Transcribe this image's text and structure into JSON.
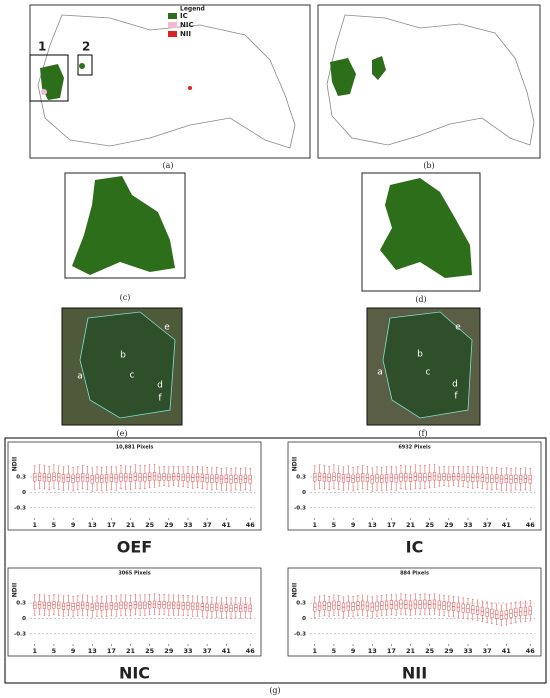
{
  "panel_labels": {
    "a": "(a)",
    "b": "(b)",
    "c": "(c)",
    "d": "(d)",
    "e": "(e)",
    "f": "(f)",
    "g": "(g)"
  },
  "map_legend": {
    "title": "Legend",
    "items": [
      "IC",
      "NIC",
      "NII"
    ]
  },
  "insets": [
    "1",
    "2"
  ],
  "zones": [
    "a",
    "b",
    "c",
    "d",
    "e",
    "f"
  ],
  "chart_data": [
    {
      "type": "box",
      "name": "OEF",
      "title": "10,881 Pixels",
      "y_label": "NDII",
      "color": "#e06666",
      "x": [
        1,
        2,
        3,
        4,
        5,
        6,
        7,
        8,
        9,
        10,
        11,
        12,
        13,
        14,
        15,
        16,
        17,
        18,
        19,
        20,
        21,
        22,
        23,
        24,
        25,
        26,
        27,
        28,
        29,
        30,
        31,
        32,
        33,
        34,
        35,
        36,
        37,
        38,
        39,
        40,
        41,
        42,
        43,
        44,
        45,
        46
      ],
      "xlim": [
        0,
        47
      ],
      "xticks": [
        1,
        5,
        9,
        13,
        17,
        21,
        25,
        29,
        33,
        37,
        41,
        46
      ],
      "ylim": [
        -0.5,
        0.75
      ],
      "yticks": [
        0.3,
        0,
        -0.3
      ],
      "grid": true,
      "median": [
        0.3,
        0.31,
        0.3,
        0.29,
        0.31,
        0.3,
        0.28,
        0.29,
        0.27,
        0.29,
        0.3,
        0.29,
        0.26,
        0.28,
        0.27,
        0.28,
        0.29,
        0.28,
        0.3,
        0.3,
        0.29,
        0.31,
        0.3,
        0.3,
        0.31,
        0.32,
        0.3,
        0.31,
        0.3,
        0.31,
        0.31,
        0.3,
        0.3,
        0.29,
        0.3,
        0.29,
        0.28,
        0.27,
        0.28,
        0.26,
        0.27,
        0.26,
        0.27,
        0.26,
        0.27,
        0.26
      ],
      "q1": [
        0.22,
        0.23,
        0.22,
        0.21,
        0.23,
        0.22,
        0.2,
        0.21,
        0.19,
        0.21,
        0.22,
        0.21,
        0.18,
        0.2,
        0.19,
        0.2,
        0.21,
        0.2,
        0.22,
        0.22,
        0.21,
        0.23,
        0.22,
        0.22,
        0.23,
        0.24,
        0.23,
        0.24,
        0.23,
        0.24,
        0.24,
        0.23,
        0.22,
        0.21,
        0.22,
        0.21,
        0.2,
        0.19,
        0.2,
        0.18,
        0.19,
        0.18,
        0.19,
        0.18,
        0.19,
        0.18
      ],
      "q3": [
        0.37,
        0.38,
        0.37,
        0.36,
        0.38,
        0.37,
        0.35,
        0.36,
        0.34,
        0.36,
        0.37,
        0.36,
        0.33,
        0.35,
        0.34,
        0.35,
        0.36,
        0.35,
        0.37,
        0.37,
        0.36,
        0.38,
        0.37,
        0.37,
        0.38,
        0.39,
        0.36,
        0.37,
        0.36,
        0.37,
        0.37,
        0.36,
        0.37,
        0.36,
        0.37,
        0.36,
        0.35,
        0.34,
        0.35,
        0.33,
        0.34,
        0.33,
        0.34,
        0.33,
        0.34,
        0.33
      ],
      "low": [
        0.06,
        0.08,
        0.07,
        0.05,
        0.08,
        0.06,
        0.04,
        0.06,
        0.03,
        0.05,
        0.07,
        0.05,
        0.02,
        0.04,
        0.03,
        0.04,
        0.05,
        0.04,
        0.07,
        0.06,
        0.05,
        0.08,
        0.07,
        0.07,
        0.09,
        0.1,
        0.12,
        0.13,
        0.12,
        0.13,
        0.12,
        0.11,
        0.1,
        0.08,
        0.09,
        0.07,
        0.06,
        0.05,
        0.06,
        0.03,
        0.04,
        0.03,
        0.05,
        0.04,
        0.05,
        0.04
      ],
      "high": [
        0.52,
        0.54,
        0.53,
        0.51,
        0.54,
        0.52,
        0.5,
        0.52,
        0.49,
        0.51,
        0.53,
        0.51,
        0.48,
        0.5,
        0.49,
        0.5,
        0.51,
        0.5,
        0.53,
        0.52,
        0.51,
        0.54,
        0.53,
        0.53,
        0.54,
        0.55,
        0.5,
        0.51,
        0.5,
        0.51,
        0.51,
        0.5,
        0.51,
        0.5,
        0.51,
        0.5,
        0.49,
        0.48,
        0.49,
        0.47,
        0.48,
        0.47,
        0.48,
        0.47,
        0.48,
        0.47
      ]
    },
    {
      "type": "box",
      "name": "IC",
      "title": "6932 Pixels",
      "y_label": "NDII",
      "color": "#e06666",
      "x": [
        1,
        2,
        3,
        4,
        5,
        6,
        7,
        8,
        9,
        10,
        11,
        12,
        13,
        14,
        15,
        16,
        17,
        18,
        19,
        20,
        21,
        22,
        23,
        24,
        25,
        26,
        27,
        28,
        29,
        30,
        31,
        32,
        33,
        34,
        35,
        36,
        37,
        38,
        39,
        40,
        41,
        42,
        43,
        44,
        45,
        46
      ],
      "xlim": [
        0,
        47
      ],
      "xticks": [
        1,
        5,
        9,
        13,
        17,
        21,
        25,
        29,
        33,
        37,
        41,
        46
      ],
      "ylim": [
        -0.5,
        0.75
      ],
      "yticks": [
        0.3,
        0,
        -0.3
      ],
      "grid": true,
      "median": [
        0.3,
        0.31,
        0.3,
        0.29,
        0.31,
        0.3,
        0.28,
        0.29,
        0.27,
        0.29,
        0.3,
        0.29,
        0.26,
        0.28,
        0.27,
        0.28,
        0.29,
        0.28,
        0.3,
        0.3,
        0.29,
        0.31,
        0.3,
        0.3,
        0.31,
        0.32,
        0.3,
        0.31,
        0.3,
        0.31,
        0.31,
        0.3,
        0.3,
        0.29,
        0.3,
        0.29,
        0.28,
        0.27,
        0.28,
        0.26,
        0.27,
        0.26,
        0.27,
        0.26,
        0.27,
        0.26
      ],
      "q1": [
        0.22,
        0.23,
        0.22,
        0.21,
        0.23,
        0.22,
        0.2,
        0.21,
        0.19,
        0.21,
        0.22,
        0.21,
        0.18,
        0.2,
        0.19,
        0.2,
        0.21,
        0.2,
        0.22,
        0.22,
        0.21,
        0.23,
        0.22,
        0.22,
        0.23,
        0.24,
        0.23,
        0.24,
        0.23,
        0.24,
        0.24,
        0.23,
        0.22,
        0.21,
        0.22,
        0.21,
        0.2,
        0.19,
        0.2,
        0.18,
        0.19,
        0.18,
        0.19,
        0.18,
        0.19,
        0.18
      ],
      "q3": [
        0.37,
        0.38,
        0.37,
        0.36,
        0.38,
        0.37,
        0.35,
        0.36,
        0.34,
        0.36,
        0.37,
        0.36,
        0.33,
        0.35,
        0.34,
        0.35,
        0.36,
        0.35,
        0.37,
        0.37,
        0.36,
        0.38,
        0.37,
        0.37,
        0.38,
        0.39,
        0.36,
        0.37,
        0.36,
        0.37,
        0.37,
        0.36,
        0.37,
        0.36,
        0.37,
        0.36,
        0.35,
        0.34,
        0.35,
        0.33,
        0.34,
        0.33,
        0.34,
        0.33,
        0.34,
        0.33
      ],
      "low": [
        0.06,
        0.08,
        0.07,
        0.05,
        0.08,
        0.06,
        0.04,
        0.06,
        0.03,
        0.05,
        0.07,
        0.05,
        0.02,
        0.04,
        0.03,
        0.04,
        0.05,
        0.04,
        0.07,
        0.06,
        0.05,
        0.08,
        0.07,
        0.07,
        0.09,
        0.1,
        0.12,
        0.13,
        0.12,
        0.13,
        0.12,
        0.11,
        0.1,
        0.08,
        0.09,
        0.07,
        0.06,
        0.05,
        0.06,
        0.03,
        0.04,
        0.03,
        0.05,
        0.04,
        0.05,
        0.04
      ],
      "high": [
        0.52,
        0.54,
        0.53,
        0.51,
        0.54,
        0.52,
        0.5,
        0.52,
        0.49,
        0.51,
        0.53,
        0.51,
        0.48,
        0.5,
        0.49,
        0.5,
        0.51,
        0.5,
        0.53,
        0.52,
        0.51,
        0.54,
        0.53,
        0.53,
        0.54,
        0.55,
        0.5,
        0.51,
        0.5,
        0.51,
        0.51,
        0.5,
        0.51,
        0.5,
        0.51,
        0.5,
        0.49,
        0.48,
        0.49,
        0.47,
        0.48,
        0.47,
        0.48,
        0.47,
        0.48,
        0.47
      ]
    },
    {
      "type": "box",
      "name": "NIC",
      "title": "3065 Pixels",
      "y_label": "NDII",
      "color": "#e06666",
      "x": [
        1,
        2,
        3,
        4,
        5,
        6,
        7,
        8,
        9,
        10,
        11,
        12,
        13,
        14,
        15,
        16,
        17,
        18,
        19,
        20,
        21,
        22,
        23,
        24,
        25,
        26,
        27,
        28,
        29,
        30,
        31,
        32,
        33,
        34,
        35,
        36,
        37,
        38,
        39,
        40,
        41,
        42,
        43,
        44,
        45,
        46
      ],
      "xlim": [
        0,
        47
      ],
      "xticks": [
        1,
        5,
        9,
        13,
        17,
        21,
        25,
        29,
        33,
        37,
        41,
        46
      ],
      "ylim": [
        -0.5,
        0.75
      ],
      "yticks": [
        0.3,
        0,
        -0.3
      ],
      "grid": true,
      "median": [
        0.26,
        0.27,
        0.26,
        0.25,
        0.27,
        0.26,
        0.24,
        0.25,
        0.23,
        0.25,
        0.26,
        0.25,
        0.22,
        0.24,
        0.23,
        0.24,
        0.25,
        0.24,
        0.26,
        0.26,
        0.25,
        0.27,
        0.26,
        0.26,
        0.27,
        0.28,
        0.27,
        0.27,
        0.26,
        0.26,
        0.26,
        0.25,
        0.25,
        0.24,
        0.24,
        0.23,
        0.22,
        0.21,
        0.22,
        0.2,
        0.21,
        0.2,
        0.21,
        0.2,
        0.21,
        0.2
      ],
      "q1": [
        0.19,
        0.2,
        0.19,
        0.18,
        0.2,
        0.19,
        0.17,
        0.18,
        0.16,
        0.18,
        0.19,
        0.18,
        0.15,
        0.17,
        0.16,
        0.17,
        0.18,
        0.17,
        0.19,
        0.19,
        0.18,
        0.2,
        0.19,
        0.19,
        0.2,
        0.21,
        0.2,
        0.2,
        0.19,
        0.19,
        0.19,
        0.18,
        0.18,
        0.17,
        0.17,
        0.16,
        0.15,
        0.14,
        0.15,
        0.13,
        0.14,
        0.13,
        0.14,
        0.13,
        0.14,
        0.13
      ],
      "q3": [
        0.32,
        0.33,
        0.32,
        0.31,
        0.33,
        0.32,
        0.3,
        0.31,
        0.29,
        0.31,
        0.32,
        0.31,
        0.28,
        0.3,
        0.29,
        0.3,
        0.31,
        0.3,
        0.32,
        0.32,
        0.31,
        0.33,
        0.32,
        0.32,
        0.33,
        0.34,
        0.33,
        0.33,
        0.32,
        0.32,
        0.32,
        0.31,
        0.31,
        0.3,
        0.3,
        0.29,
        0.28,
        0.27,
        0.28,
        0.26,
        0.27,
        0.26,
        0.27,
        0.26,
        0.27,
        0.26
      ],
      "low": [
        0.06,
        0.07,
        0.06,
        0.05,
        0.07,
        0.06,
        0.04,
        0.05,
        0.03,
        0.05,
        0.06,
        0.05,
        0.02,
        0.04,
        0.03,
        0.04,
        0.05,
        0.04,
        0.06,
        0.06,
        0.05,
        0.07,
        0.06,
        0.06,
        0.07,
        0.08,
        0.07,
        0.07,
        0.06,
        0.06,
        0.06,
        0.05,
        0.05,
        0.04,
        0.04,
        0.03,
        0.02,
        0.01,
        0.02,
        0.0,
        0.01,
        0.0,
        0.01,
        0.0,
        0.01,
        0.0
      ],
      "high": [
        0.46,
        0.47,
        0.46,
        0.45,
        0.47,
        0.46,
        0.44,
        0.45,
        0.43,
        0.45,
        0.46,
        0.45,
        0.42,
        0.44,
        0.43,
        0.44,
        0.45,
        0.44,
        0.46,
        0.46,
        0.45,
        0.47,
        0.46,
        0.46,
        0.47,
        0.48,
        0.47,
        0.47,
        0.46,
        0.46,
        0.46,
        0.45,
        0.45,
        0.44,
        0.44,
        0.43,
        0.42,
        0.41,
        0.42,
        0.4,
        0.41,
        0.4,
        0.41,
        0.4,
        0.41,
        0.4
      ]
    },
    {
      "type": "box",
      "name": "NII",
      "title": "884 Pixels",
      "y_label": "NDII",
      "color": "#e06666",
      "x": [
        1,
        2,
        3,
        4,
        5,
        6,
        7,
        8,
        9,
        10,
        11,
        12,
        13,
        14,
        15,
        16,
        17,
        18,
        19,
        20,
        21,
        22,
        23,
        24,
        25,
        26,
        27,
        28,
        29,
        30,
        31,
        32,
        33,
        34,
        35,
        36,
        37,
        38,
        39,
        40,
        41,
        42,
        43,
        44,
        45,
        46
      ],
      "xlim": [
        0,
        47
      ],
      "xticks": [
        1,
        5,
        9,
        13,
        17,
        21,
        25,
        29,
        33,
        37,
        41,
        46
      ],
      "ylim": [
        -0.5,
        0.75
      ],
      "yticks": [
        0.3,
        0,
        -0.3
      ],
      "grid": true,
      "median": [
        0.22,
        0.24,
        0.25,
        0.23,
        0.26,
        0.25,
        0.22,
        0.24,
        0.23,
        0.25,
        0.26,
        0.24,
        0.22,
        0.24,
        0.25,
        0.26,
        0.27,
        0.26,
        0.28,
        0.27,
        0.26,
        0.28,
        0.27,
        0.28,
        0.27,
        0.28,
        0.26,
        0.25,
        0.24,
        0.23,
        0.22,
        0.2,
        0.19,
        0.17,
        0.16,
        0.14,
        0.12,
        0.1,
        0.08,
        0.06,
        0.07,
        0.1,
        0.12,
        0.13,
        0.14,
        0.15
      ],
      "q1": [
        0.14,
        0.16,
        0.17,
        0.15,
        0.18,
        0.17,
        0.14,
        0.16,
        0.15,
        0.17,
        0.18,
        0.16,
        0.14,
        0.16,
        0.17,
        0.18,
        0.19,
        0.18,
        0.2,
        0.19,
        0.18,
        0.2,
        0.19,
        0.2,
        0.19,
        0.2,
        0.18,
        0.17,
        0.16,
        0.15,
        0.14,
        0.12,
        0.11,
        0.09,
        0.08,
        0.06,
        0.04,
        0.02,
        0.0,
        -0.02,
        -0.01,
        0.02,
        0.04,
        0.05,
        0.06,
        0.07
      ],
      "q3": [
        0.3,
        0.32,
        0.33,
        0.31,
        0.34,
        0.33,
        0.3,
        0.32,
        0.31,
        0.33,
        0.34,
        0.32,
        0.3,
        0.32,
        0.33,
        0.34,
        0.35,
        0.34,
        0.36,
        0.35,
        0.34,
        0.36,
        0.35,
        0.36,
        0.35,
        0.36,
        0.34,
        0.33,
        0.32,
        0.31,
        0.3,
        0.28,
        0.27,
        0.25,
        0.24,
        0.22,
        0.2,
        0.18,
        0.16,
        0.14,
        0.15,
        0.18,
        0.2,
        0.21,
        0.22,
        0.23
      ],
      "low": [
        0.02,
        0.04,
        0.05,
        0.03,
        0.06,
        0.05,
        0.02,
        0.04,
        0.03,
        0.05,
        0.06,
        0.04,
        0.02,
        0.04,
        0.05,
        0.06,
        0.07,
        0.06,
        0.08,
        0.07,
        0.06,
        0.08,
        0.07,
        0.08,
        0.07,
        0.08,
        0.06,
        0.05,
        0.04,
        0.03,
        0.02,
        0.0,
        -0.01,
        -0.03,
        -0.04,
        -0.06,
        -0.08,
        -0.1,
        -0.12,
        -0.14,
        -0.13,
        -0.1,
        -0.08,
        -0.07,
        -0.06,
        -0.05
      ],
      "high": [
        0.42,
        0.44,
        0.45,
        0.43,
        0.46,
        0.45,
        0.42,
        0.44,
        0.43,
        0.45,
        0.46,
        0.44,
        0.42,
        0.44,
        0.45,
        0.46,
        0.47,
        0.46,
        0.48,
        0.47,
        0.46,
        0.48,
        0.47,
        0.48,
        0.47,
        0.48,
        0.46,
        0.45,
        0.44,
        0.43,
        0.42,
        0.4,
        0.39,
        0.37,
        0.36,
        0.34,
        0.32,
        0.3,
        0.28,
        0.26,
        0.27,
        0.3,
        0.32,
        0.33,
        0.34,
        0.35
      ]
    }
  ]
}
